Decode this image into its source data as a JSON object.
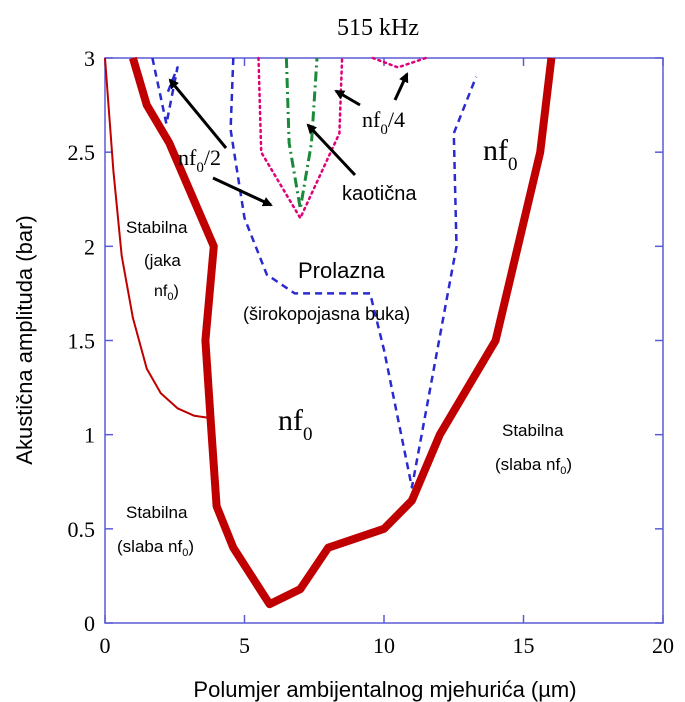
{
  "chart_data": {
    "type": "line",
    "title": "515 kHz",
    "xlabel": "Polumjer ambijentalnog mjehurića (µm)",
    "ylabel": "Akustična amplituda (bar)",
    "xlim": [
      0,
      20
    ],
    "ylim": [
      0,
      3
    ],
    "x_ticks": [
      "0",
      "5",
      "10",
      "15",
      "20"
    ],
    "y_ticks": [
      "0",
      "0.5",
      "1",
      "1.5",
      "2",
      "2.5",
      "3"
    ],
    "grid": false,
    "colors": {
      "axes": "#5b5bd6",
      "stable_boundary": "#c00000",
      "inner_boundary": "#c00000",
      "nf0_2": "#2a2ad0",
      "nf0_4": "#e0007a",
      "chaotic": "#1a8a3a",
      "arrow": "#000000"
    },
    "series": [
      {
        "key": "main_boundary",
        "style": "thick-solid",
        "color": "#c00000",
        "x": [
          1,
          1.5,
          2.3,
          3.9,
          3.6,
          3.8,
          4.0,
          4.6,
          5.9,
          7.0,
          8.0,
          10.0,
          11.0,
          12.0,
          14.0,
          15.6,
          16.0
        ],
        "y": [
          3,
          2.75,
          2.55,
          2.0,
          1.5,
          1.05,
          0.62,
          0.4,
          0.1,
          0.18,
          0.4,
          0.5,
          0.65,
          1.0,
          1.5,
          2.5,
          3
        ]
      },
      {
        "key": "inner_boundary",
        "style": "thin-solid",
        "color": "#c00000",
        "x": [
          0,
          0.3,
          0.6,
          1.0,
          1.5,
          2.0,
          2.6,
          3.2,
          3.7
        ],
        "y": [
          3,
          2.4,
          1.95,
          1.62,
          1.35,
          1.22,
          1.14,
          1.1,
          1.09
        ]
      },
      {
        "key": "nf0_2_left",
        "style": "dashed",
        "color": "#2a2ad0",
        "x": [
          1.7,
          2.2,
          2.6,
          2.2
        ],
        "y": [
          3,
          2.65,
          2.95,
          2.8
        ]
      },
      {
        "key": "nf0_2_main",
        "style": "dashed",
        "color": "#2a2ad0",
        "x": [
          4.6,
          4.5,
          5.0,
          5.8,
          6.8,
          8.2,
          9.5,
          10.0,
          11.0,
          12.6,
          12.5,
          13.3
        ],
        "y": [
          3,
          2.62,
          2.15,
          1.85,
          1.75,
          1.75,
          1.75,
          1.45,
          0.72,
          2.0,
          2.6,
          2.9
        ]
      },
      {
        "key": "nf0_4_left",
        "style": "dotted",
        "color": "#e0007a",
        "x": [
          5.5,
          5.6,
          7.0,
          8.4,
          8.5
        ],
        "y": [
          3,
          2.5,
          2.15,
          2.6,
          3
        ]
      },
      {
        "key": "nf0_4_right",
        "style": "dotted",
        "color": "#e0007a",
        "x": [
          9.6,
          10.5,
          11.5
        ],
        "y": [
          3,
          2.95,
          3
        ]
      },
      {
        "key": "chaotic",
        "style": "dash-dot",
        "color": "#1a8a3a",
        "x": [
          6.5,
          6.6,
          7.0,
          7.4,
          7.6
        ],
        "y": [
          3,
          2.55,
          2.2,
          2.55,
          3
        ]
      }
    ],
    "labels": {
      "nf0_2": "nf0/2",
      "nf0_4": "nf0/4",
      "nf0_top_right": "nf0",
      "nf0_center": "nf0",
      "kaoticna": "kaotična",
      "prolazna": "Prolazna",
      "prolazna_sub": "(širokopojasna buka)",
      "stabilna_jaka_1": "Stabilna",
      "stabilna_jaka_2": "(jaka",
      "stabilna_jaka_3": "nf0)",
      "stabilna_slaba_left_1": "Stabilna",
      "stabilna_slaba_left_2": "(slaba nf0)",
      "stabilna_slaba_right_1": "Stabilna",
      "stabilna_slaba_right_2": "(slaba nf0)"
    }
  }
}
